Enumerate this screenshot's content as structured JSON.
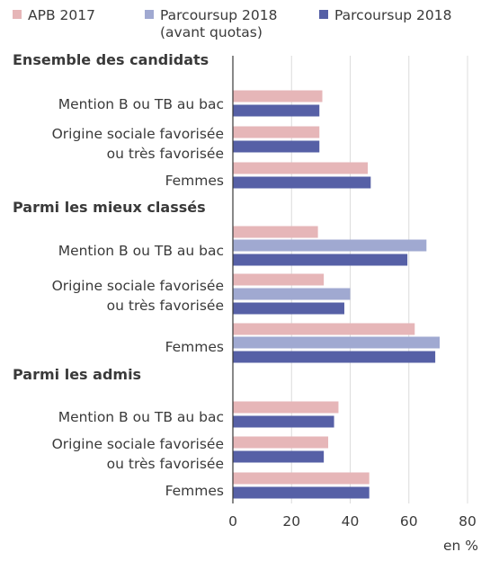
{
  "chart_data": {
    "type": "bar",
    "orientation": "horizontal",
    "legend": {
      "position": "top",
      "entries": [
        {
          "name": "APB 2017",
          "color": "#e6b6b8"
        },
        {
          "name": "Parcoursup 2018",
          "name_line2": "(avant quotas)",
          "color": "#a0a9d1"
        },
        {
          "name": "Parcoursup 2018",
          "color": "#5660a6"
        }
      ]
    },
    "xlim": [
      0,
      80
    ],
    "xticks": [
      0,
      20,
      40,
      60,
      80
    ],
    "xunit": "en %",
    "grid": "vertical",
    "groups": [
      {
        "title": "Ensemble des candidats",
        "categories": [
          {
            "label": [
              "Mention B ou TB au bac"
            ],
            "values": [
              {
                "series": 0,
                "value": 30.5
              },
              {
                "series": 2,
                "value": 29.5
              }
            ]
          },
          {
            "label": [
              "Origine sociale favorisée",
              "ou très favorisée"
            ],
            "values": [
              {
                "series": 0,
                "value": 29.5
              },
              {
                "series": 2,
                "value": 29.5
              }
            ]
          },
          {
            "label": [
              "Femmes"
            ],
            "values": [
              {
                "series": 0,
                "value": 46
              },
              {
                "series": 2,
                "value": 47
              }
            ]
          }
        ]
      },
      {
        "title": "Parmi les mieux classés",
        "categories": [
          {
            "label": [
              "Mention B ou TB au bac"
            ],
            "values": [
              {
                "series": 0,
                "value": 29
              },
              {
                "series": 1,
                "value": 66
              },
              {
                "series": 2,
                "value": 59.5
              }
            ]
          },
          {
            "label": [
              "Origine sociale favorisée",
              "ou très favorisée"
            ],
            "values": [
              {
                "series": 0,
                "value": 31
              },
              {
                "series": 1,
                "value": 40
              },
              {
                "series": 2,
                "value": 38
              }
            ]
          },
          {
            "label": [
              "Femmes"
            ],
            "values": [
              {
                "series": 0,
                "value": 62
              },
              {
                "series": 1,
                "value": 70.5
              },
              {
                "series": 2,
                "value": 69
              }
            ]
          }
        ]
      },
      {
        "title": "Parmi les admis",
        "categories": [
          {
            "label": [
              "Mention B ou TB au bac"
            ],
            "values": [
              {
                "series": 0,
                "value": 36
              },
              {
                "series": 2,
                "value": 34.5
              }
            ]
          },
          {
            "label": [
              "Origine sociale favorisée",
              "ou très favorisée"
            ],
            "values": [
              {
                "series": 0,
                "value": 32.5
              },
              {
                "series": 2,
                "value": 31
              }
            ]
          },
          {
            "label": [
              "Femmes"
            ],
            "values": [
              {
                "series": 0,
                "value": 46.5
              },
              {
                "series": 2,
                "value": 46.5
              }
            ]
          }
        ]
      }
    ]
  }
}
